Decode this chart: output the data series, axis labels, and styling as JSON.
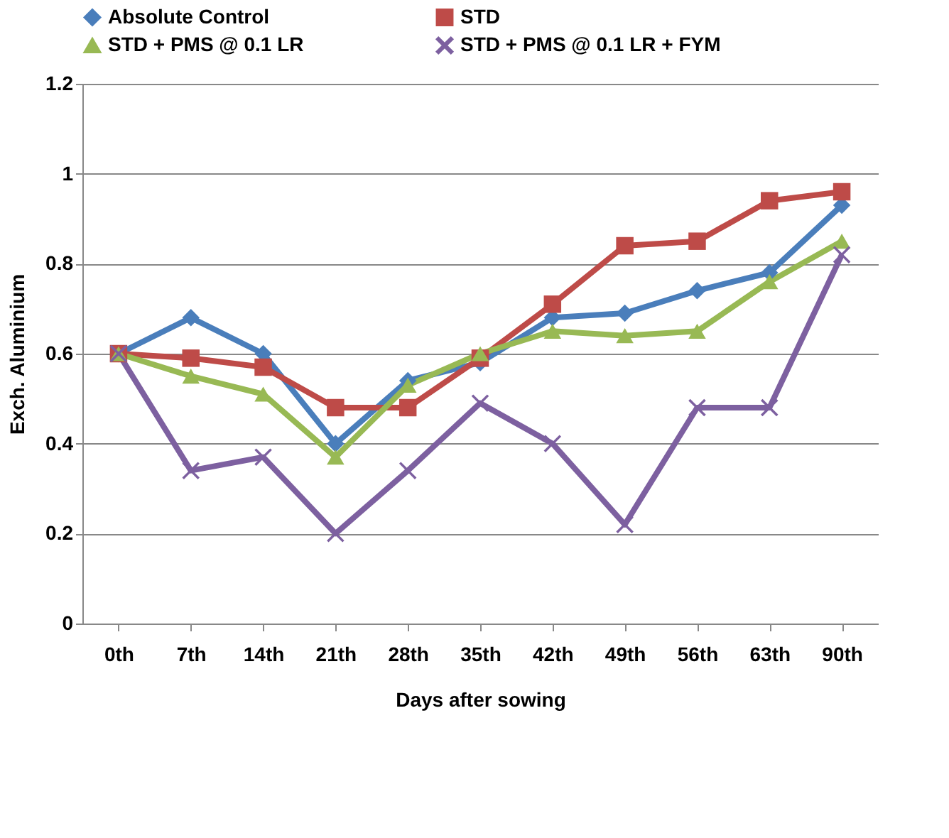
{
  "chart_data": {
    "type": "line",
    "xlabel": "Days after sowing",
    "ylabel": "Exch. Aluminium",
    "categories": [
      "0th",
      "7th",
      "14th",
      "21th",
      "28th",
      "35th",
      "42th",
      "49th",
      "56th",
      "63th",
      "90th"
    ],
    "series": [
      {
        "name": "Absolute Control",
        "color": "#4a7ebb",
        "marker": "diamond",
        "values": [
          0.6,
          0.68,
          0.6,
          0.4,
          0.54,
          0.58,
          0.68,
          0.69,
          0.74,
          0.78,
          0.93
        ]
      },
      {
        "name": "STD",
        "color": "#be4b48",
        "marker": "square",
        "values": [
          0.6,
          0.59,
          0.57,
          0.48,
          0.48,
          0.59,
          0.71,
          0.84,
          0.85,
          0.94,
          0.96
        ]
      },
      {
        "name": "STD + PMS @ 0.1 LR",
        "color": "#98b954",
        "marker": "triangle",
        "values": [
          0.6,
          0.55,
          0.51,
          0.37,
          0.53,
          0.6,
          0.65,
          0.64,
          0.65,
          0.76,
          0.85
        ]
      },
      {
        "name": "STD + PMS @ 0.1 LR + FYM",
        "color": "#7d60a0",
        "marker": "cross",
        "values": [
          0.6,
          0.34,
          0.37,
          0.2,
          0.34,
          0.49,
          0.4,
          0.22,
          0.48,
          0.48,
          0.82
        ]
      }
    ],
    "ylim": [
      0,
      1.2
    ],
    "yticks": [
      0,
      0.2,
      0.4,
      0.6,
      0.8,
      1,
      1.2
    ],
    "grid": "y",
    "legend": "top",
    "line_style": "solid"
  }
}
